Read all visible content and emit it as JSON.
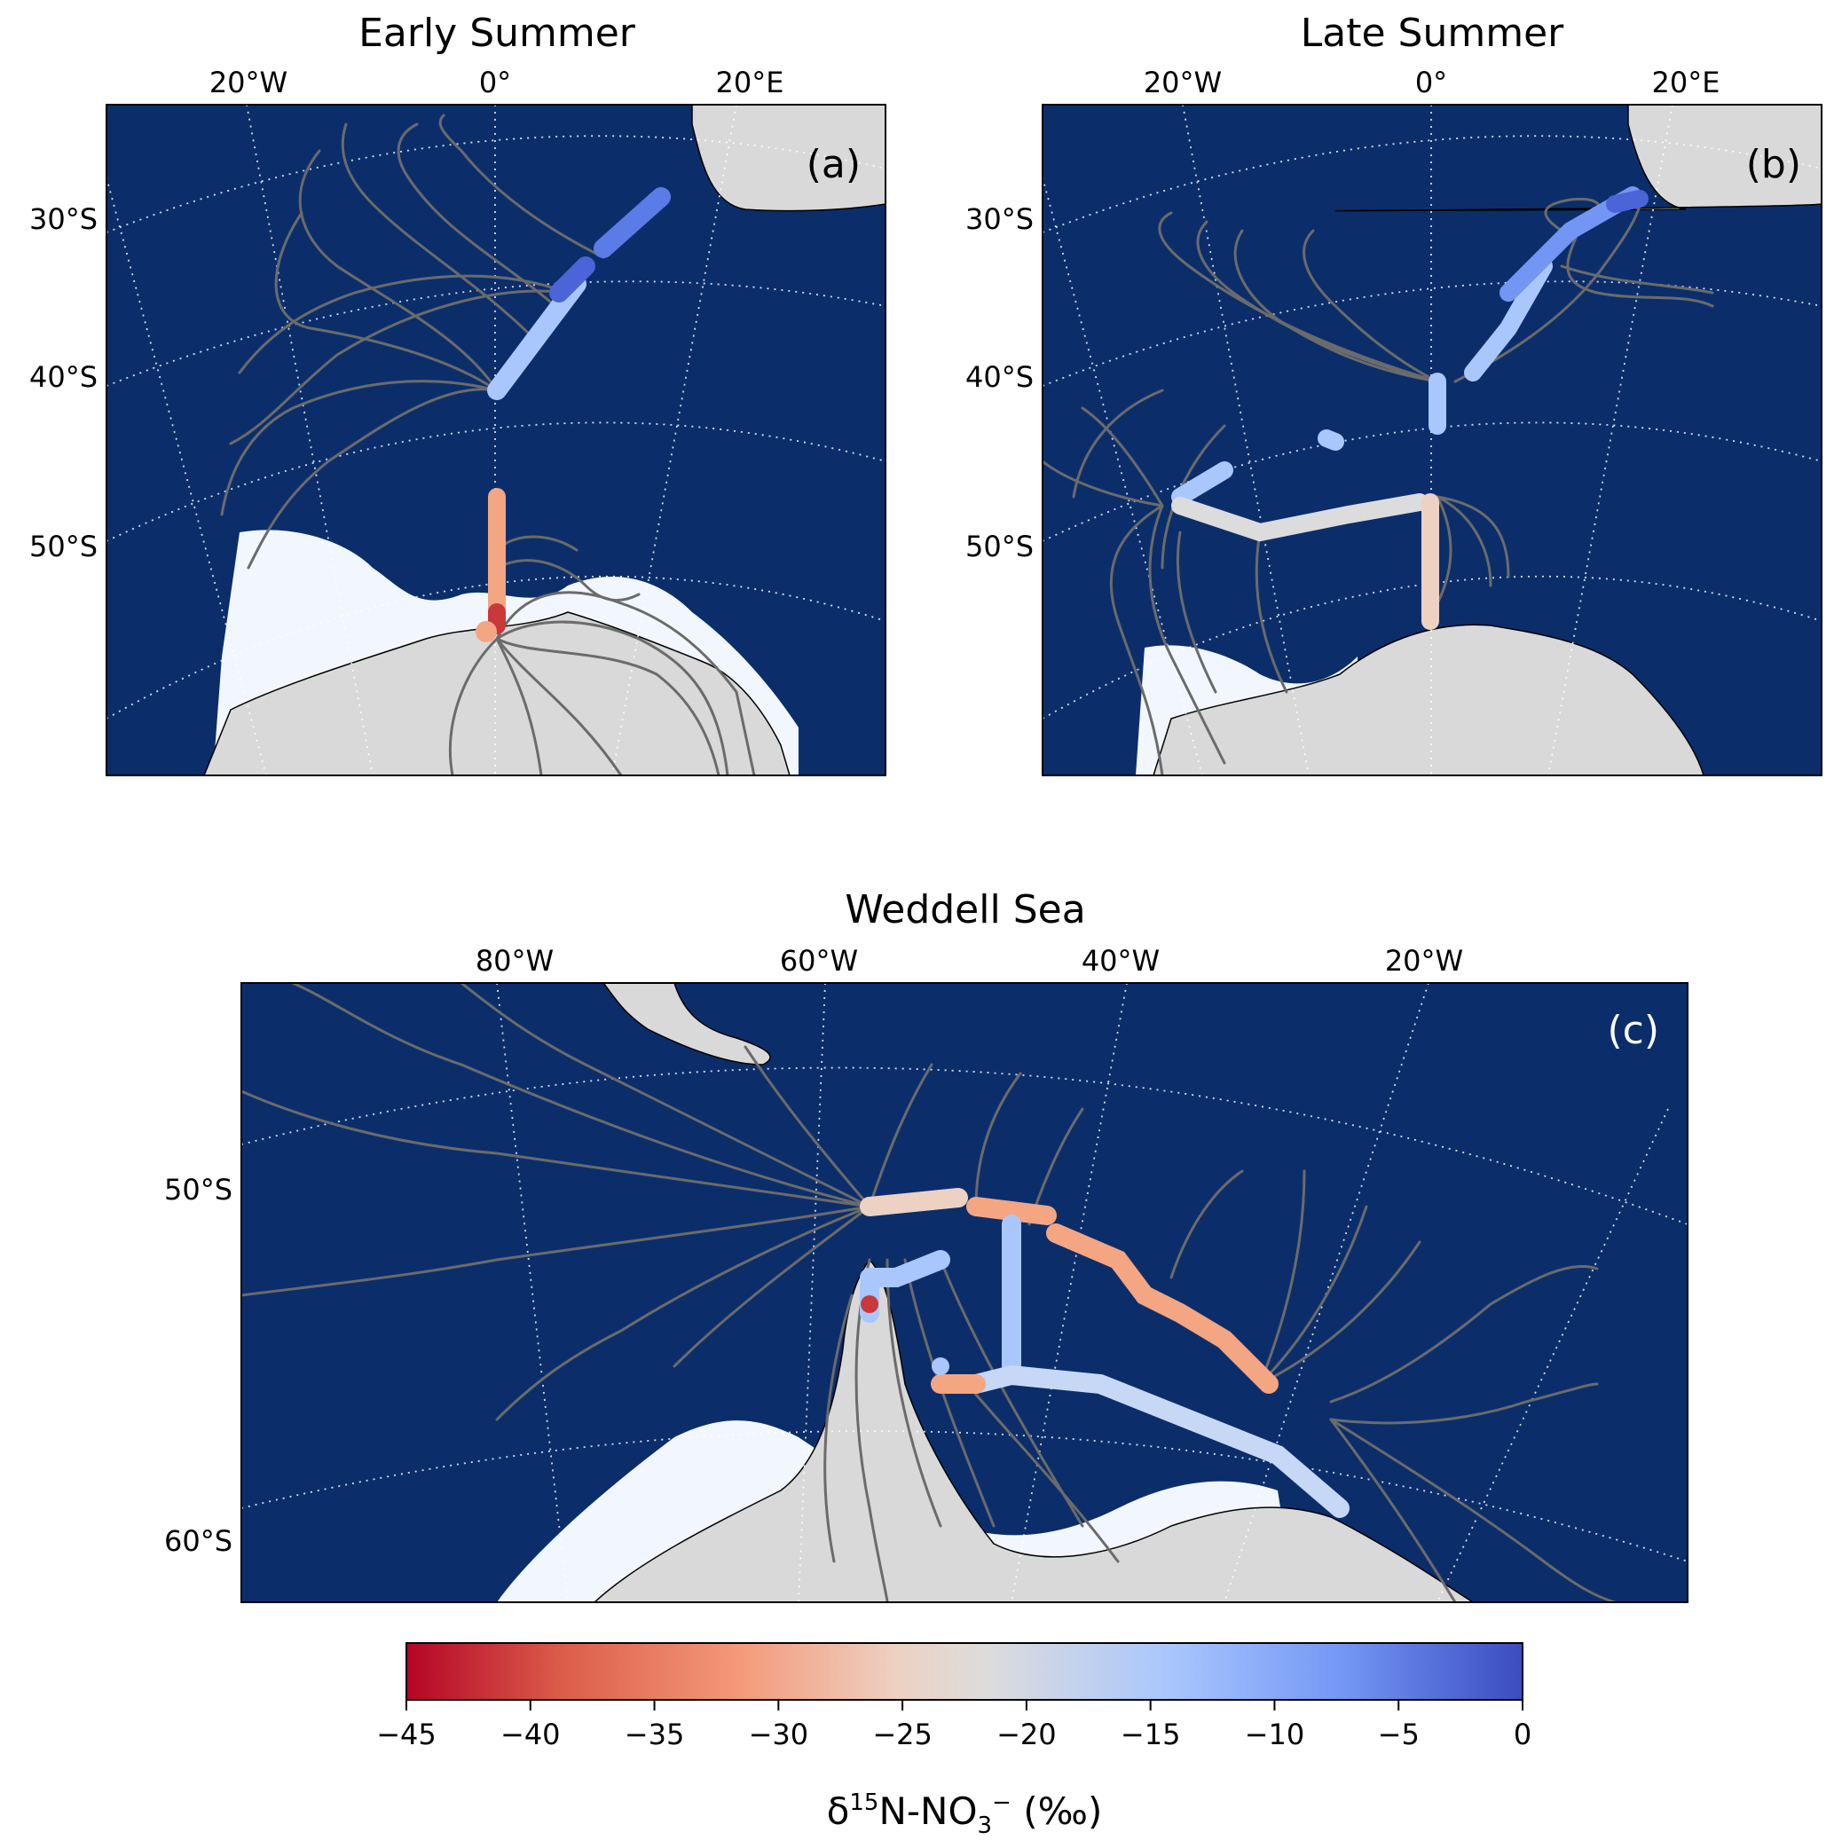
{
  "panels": [
    {
      "id": "a",
      "title": "Early Summer",
      "label": "(a)",
      "lon_ticks": [
        "20°W",
        "0°",
        "20°E"
      ],
      "lat_ticks": [
        "30°S",
        "40°S",
        "50°S"
      ]
    },
    {
      "id": "b",
      "title": "Late Summer",
      "label": "(b)",
      "lon_ticks": [
        "20°W",
        "0°",
        "20°E"
      ],
      "lat_ticks": [
        "30°S",
        "40°S",
        "50°S"
      ]
    },
    {
      "id": "c",
      "title": "Weddell Sea",
      "label": "(c)",
      "lon_ticks": [
        "80°W",
        "60°W",
        "40°W",
        "20°W"
      ],
      "lat_ticks": [
        "50°S",
        "60°S"
      ]
    }
  ],
  "colorbar": {
    "min": -45,
    "max": 0,
    "tick_labels": [
      "−45",
      "−40",
      "−35",
      "−30",
      "−25",
      "−20",
      "−15",
      "−10",
      "−5",
      "0"
    ],
    "label_main": "δ",
    "label_sup1": "15",
    "label_mid": "N-NO",
    "label_sub": "3",
    "label_sup2": "−",
    "label_end": " (‰)",
    "colors": [
      "#b40426",
      "#dc5d4a",
      "#f49a7b",
      "#edd1c2",
      "#dddcdc",
      "#aac7fd",
      "#7396f5",
      "#3b4cc0"
    ]
  },
  "colors": {
    "ocean": "#0b2e6b",
    "land": "#d9d9d9",
    "sea_ice": "#f2f7ff",
    "trajectory": "#6b6b6b",
    "grid": "#ffffff"
  }
}
